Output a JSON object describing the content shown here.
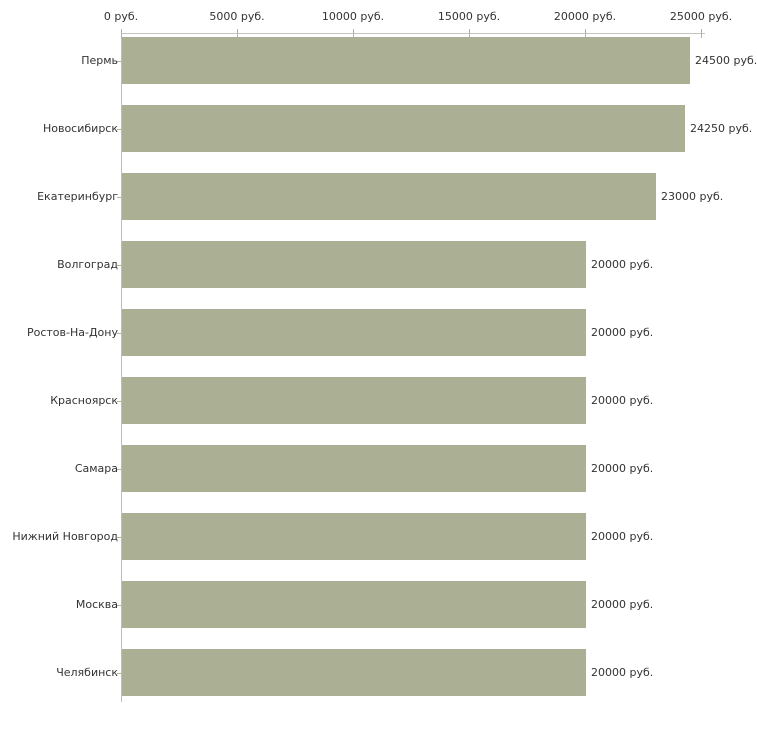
{
  "chart_data": {
    "type": "bar",
    "orientation": "horizontal",
    "title": "",
    "xlabel": "",
    "ylabel": "",
    "unit": "руб.",
    "categories": [
      "Пермь",
      "Новосибирск",
      "Екатеринбург",
      "Волгоград",
      "Ростов-На-Дону",
      "Красноярск",
      "Самара",
      "Нижний Новгород",
      "Москва",
      "Челябинск"
    ],
    "values": [
      24500,
      24250,
      23000,
      20000,
      20000,
      20000,
      20000,
      20000,
      20000,
      20000
    ],
    "value_labels": [
      "24500 руб.",
      "24250 руб.",
      "23000 руб.",
      "20000 руб.",
      "20000 руб.",
      "20000 руб.",
      "20000 руб.",
      "20000 руб.",
      "20000 руб.",
      "20000 руб."
    ],
    "xlim": [
      0,
      25000
    ],
    "x_ticks": [
      0,
      5000,
      10000,
      15000,
      20000,
      25000
    ],
    "x_tick_labels": [
      "0 руб.",
      "5000 руб.",
      "10000 руб.",
      "15000 руб.",
      "20000 руб.",
      "25000 руб."
    ],
    "grid": false,
    "legend": false,
    "colors": {
      "bar_fill": "#abb095",
      "x_axis_line": "#c3c3c0",
      "y_axis_line": "#bdbdbd",
      "tick_mark": "#b3b690",
      "text": "#333333",
      "background": "#ffffff"
    }
  }
}
